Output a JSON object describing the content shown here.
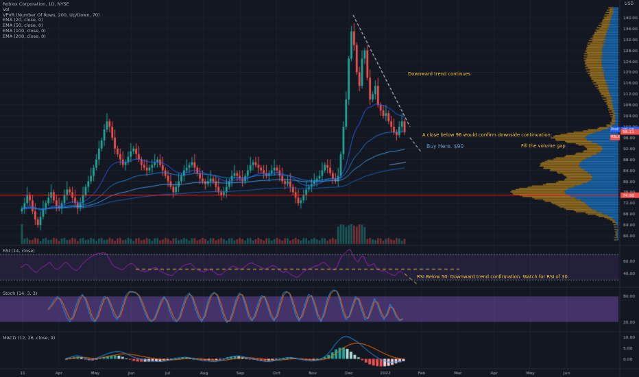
{
  "header": {
    "title": "Roblox Corporation, 1D, NYSE",
    "lines": [
      "Vol",
      "VPVR (Number Of Rows, 200, Up/Down, 70)",
      "EMA (20, close, 0)",
      "EMA (50, close, 0)",
      "EMA (100, close, 0)",
      "EMA (200, close, 0)"
    ],
    "currency": "USD"
  },
  "panes": {
    "rsi_label": "RSI (14, close)",
    "stoch_label": "Stoch (14, 3, 3)",
    "macd_label": "MACD (12, 26, close, 9)"
  },
  "annotations": {
    "trend": "Downward trend continues",
    "close_below": "A close below 96 would confirm downside continuation.",
    "buy": "Buy Here. $90",
    "gap": "Fill the volume gap",
    "rsi_note": "RSI Below 50.  Downward trend confirmation.  Watch for RSI of 30."
  },
  "colors": {
    "background": "#131722",
    "up": "#26a69a",
    "down": "#ef5350",
    "support_line": "#ff1e1e",
    "ema_blue": "#2962ff",
    "rsi_line": "#9c27b0",
    "stoch_k": "#2196f3",
    "stoch_d": "#ff6d00",
    "macd_line": "#2196f3",
    "signal_line": "#ff6d00",
    "annotation": "#f5c542",
    "vpvr_up": "#1e88e5",
    "vpvr_down": "#c8901e"
  },
  "chart_data": [
    {
      "type": "candlestick",
      "title": "Roblox Corporation, 1D, NYSE",
      "y_ticks": [
        60,
        64,
        68,
        72,
        76,
        80,
        84,
        88,
        92,
        96,
        100,
        104,
        108,
        112,
        116,
        120,
        124,
        128,
        132,
        136,
        140
      ],
      "ylim": [
        58,
        144
      ],
      "x_ticks": [
        "11",
        "Apr",
        "May",
        "Jun",
        "Jul",
        "Aug",
        "Sep",
        "Oct",
        "Nov",
        "Dec",
        "2022",
        "Feb",
        "Mar",
        "Apr",
        "May",
        "Jun"
      ],
      "price_tags": [
        {
          "label": "Post",
          "value": "98.98"
        },
        {
          "label": "RBLX",
          "value": "98.11"
        },
        {
          "label": "",
          "value": "74.90"
        }
      ],
      "support_level": 74.9,
      "closes": [
        70,
        72,
        75,
        73,
        69,
        66,
        64,
        67,
        70,
        72,
        74,
        76,
        73,
        71,
        70,
        72,
        75,
        77,
        76,
        74,
        72,
        70,
        72,
        75,
        78,
        80,
        82,
        85,
        88,
        92,
        95,
        99,
        102,
        100,
        96,
        92,
        90,
        88,
        86,
        87,
        89,
        91,
        92,
        90,
        88,
        86,
        85,
        84,
        85,
        86,
        87,
        88,
        86,
        84,
        82,
        80,
        78,
        76,
        78,
        80,
        82,
        84,
        85,
        86,
        87,
        85,
        83,
        81,
        80,
        79,
        80,
        81,
        80,
        78,
        76,
        75,
        76,
        78,
        80,
        82,
        83,
        82,
        81,
        80,
        82,
        84,
        86,
        87,
        86,
        85,
        84,
        83,
        82,
        83,
        84,
        85,
        84,
        82,
        80,
        79,
        80,
        78,
        76,
        74,
        72,
        73,
        75,
        77,
        78,
        79,
        80,
        81,
        82,
        84,
        86,
        85,
        83,
        81,
        80,
        82,
        90,
        100,
        110,
        125,
        135,
        130,
        120,
        115,
        125,
        128,
        118,
        110,
        112,
        115,
        108,
        106,
        104,
        105,
        102,
        100,
        98,
        97,
        100,
        102,
        98
      ],
      "ema_series": [
        {
          "name": "EMA (20, close, 0)"
        },
        {
          "name": "EMA (50, close, 0)"
        },
        {
          "name": "EMA (100, close, 0)"
        },
        {
          "name": "EMA (200, close, 0)"
        }
      ]
    },
    {
      "type": "line",
      "title": "RSI (14, close)",
      "y_ticks": [
        40.0,
        60.0
      ],
      "ylim": [
        20,
        80
      ],
      "upper_band": 70,
      "lower_band": 30,
      "values": [
        50,
        52,
        55,
        53,
        48,
        44,
        42,
        46,
        50,
        52,
        55,
        58,
        52,
        48,
        47,
        50,
        55,
        58,
        55,
        50,
        47,
        45,
        48,
        54,
        58,
        62,
        65,
        68,
        70,
        72,
        72,
        73,
        72,
        66,
        58,
        52,
        50,
        48,
        46,
        48,
        52,
        55,
        56,
        52,
        48,
        45,
        44,
        43,
        45,
        47,
        49,
        50,
        46,
        43,
        41,
        39,
        38,
        37,
        41,
        45,
        48,
        52,
        54,
        55,
        56,
        52,
        48,
        45,
        44,
        43,
        45,
        47,
        45,
        42,
        39,
        38,
        40,
        44,
        47,
        50,
        52,
        50,
        48,
        47,
        50,
        53,
        56,
        57,
        55,
        53,
        51,
        49,
        47,
        49,
        51,
        53,
        51,
        47,
        44,
        42,
        44,
        41,
        38,
        36,
        34,
        37,
        41,
        45,
        47,
        48,
        50,
        52,
        53,
        56,
        58,
        55,
        51,
        47,
        46,
        50,
        60,
        68,
        72,
        76,
        78,
        70,
        62,
        58,
        66,
        68,
        58,
        52,
        54,
        56,
        48,
        46,
        44,
        45,
        42,
        40,
        38,
        37,
        42,
        44,
        40
      ]
    },
    {
      "type": "line",
      "title": "Stoch (14, 3, 3)",
      "y_ticks": [
        20.0,
        80.0
      ],
      "ylim": [
        0,
        100
      ],
      "series": [
        {
          "name": "%K",
          "values": [
            50,
            60,
            72,
            80,
            70,
            50,
            30,
            20,
            35,
            60,
            78,
            85,
            70,
            45,
            25,
            20,
            40,
            65,
            80,
            75,
            55,
            35,
            25,
            40,
            65,
            85,
            92,
            90,
            88,
            80,
            60,
            40,
            25,
            20,
            30,
            50,
            70,
            80,
            65,
            40,
            25,
            20,
            35,
            60,
            80,
            88,
            75,
            50,
            30,
            20,
            40,
            70,
            85,
            90,
            80,
            55,
            30,
            18,
            25,
            50,
            75,
            88,
            80,
            55,
            30,
            22,
            40,
            65,
            82,
            78,
            55,
            32,
            22,
            40,
            70,
            88,
            92,
            85,
            60,
            35,
            22,
            40,
            65,
            85,
            80,
            55,
            30,
            20,
            45,
            75,
            90,
            95,
            92,
            70,
            40,
            25,
            35,
            60,
            80,
            70,
            45,
            25,
            30,
            55,
            75,
            60,
            38,
            25,
            40,
            62,
            48,
            30,
            22,
            28
          ]
        },
        {
          "name": "%D",
          "values": [
            48,
            55,
            66,
            76,
            74,
            60,
            42,
            26,
            28,
            48,
            70,
            82,
            76,
            56,
            34,
            22,
            32,
            55,
            74,
            78,
            63,
            44,
            30,
            33,
            55,
            78,
            90,
            91,
            89,
            83,
            68,
            48,
            30,
            22,
            26,
            43,
            63,
            77,
            70,
            50,
            32,
            22,
            28,
            50,
            72,
            85,
            80,
            60,
            38,
            24,
            32,
            60,
            80,
            88,
            84,
            64,
            40,
            22,
            22,
            40,
            66,
            84,
            84,
            64,
            38,
            24,
            32,
            55,
            76,
            80,
            63,
            40,
            25,
            32,
            58,
            82,
            90,
            88,
            70,
            45,
            26,
            32,
            55,
            78,
            82,
            64,
            38,
            24,
            36,
            64,
            85,
            93,
            93,
            78,
            50,
            30,
            32,
            52,
            74,
            75,
            55,
            32,
            28,
            46,
            68,
            66,
            45,
            30,
            35,
            55,
            52,
            36,
            25,
            26
          ]
        }
      ]
    },
    {
      "type": "histogram",
      "title": "MACD (12, 26, close, 9)",
      "y_ticks": [
        0.0,
        5.0,
        10.0
      ],
      "ylim": [
        -4,
        12
      ],
      "macd": [
        0,
        0.5,
        1,
        1.5,
        1.2,
        0.6,
        -0.2,
        -0.5,
        0,
        0.8,
        1.5,
        2.2,
        2.8,
        3.2,
        3.5,
        3.2,
        2.6,
        1.8,
        1.0,
        0.4,
        0,
        -0.3,
        -0.6,
        -0.9,
        -1.1,
        -1.3,
        -1.2,
        -1.0,
        -0.6,
        -0.1,
        0.3,
        0.5,
        0.8,
        0.6,
        0.2,
        -0.2,
        -0.6,
        -0.9,
        -1.0,
        -1.2,
        -1.3,
        -1.0,
        -0.5,
        0.2,
        0.8,
        1.2,
        1.4,
        1.2,
        0.8,
        0.4,
        0,
        -0.4,
        -0.8,
        -1.1,
        -1.3,
        -1.2,
        -0.8,
        -0.4,
        0,
        0.4,
        0.6,
        0.4,
        0.1,
        -0.3,
        -0.6,
        -0.9,
        -1.0,
        -0.8,
        -0.3,
        0.6,
        2,
        4,
        6.5,
        8.5,
        10,
        10.5,
        10,
        9,
        8,
        6.5,
        5,
        3.5,
        2.2,
        1,
        0,
        -0.8,
        -1.4,
        -1.6,
        -1.5,
        -1.3,
        -1.1
      ]
    }
  ]
}
